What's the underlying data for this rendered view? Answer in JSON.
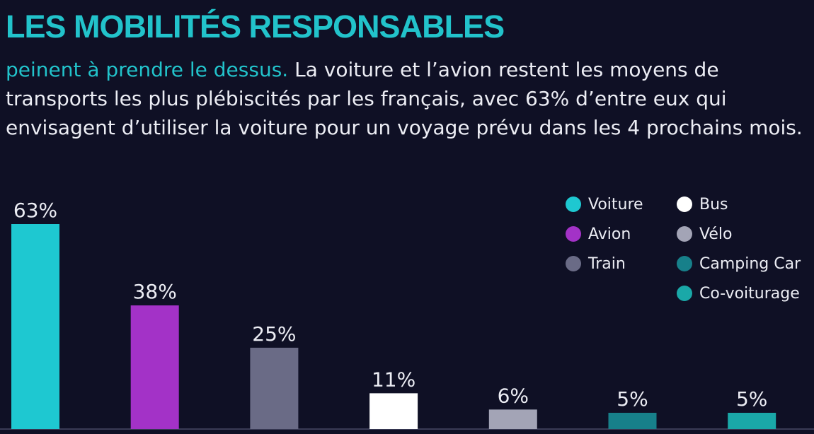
{
  "header": {
    "title": "LES MOBILITÉS RESPONSABLES",
    "lead": "peinent à prendre le dessus.",
    "body": "La voiture et l’avion restent les moyens de transports les plus plébiscités par les français, avec 63% d’entre eux qui envisagent d’utiliser la voiture pour un voyage prévu dans les 4 prochains mois."
  },
  "chart_data": {
    "type": "bar",
    "categories": [
      "Voiture",
      "Avion",
      "Train",
      "Bus",
      "Vélo",
      "Camping Car",
      "Co-voiturage"
    ],
    "values": [
      63,
      38,
      25,
      11,
      6,
      5,
      5
    ],
    "labels": [
      "63%",
      "38%",
      "25%",
      "11%",
      "6%",
      "5%",
      "5%"
    ],
    "colors": [
      "#1ec8d1",
      "#a332c7",
      "#6a6b86",
      "#ffffff",
      "#a3a4b6",
      "#17808a",
      "#1aa8a8"
    ],
    "ylim": [
      0,
      63
    ],
    "legend_position": "top-right"
  }
}
